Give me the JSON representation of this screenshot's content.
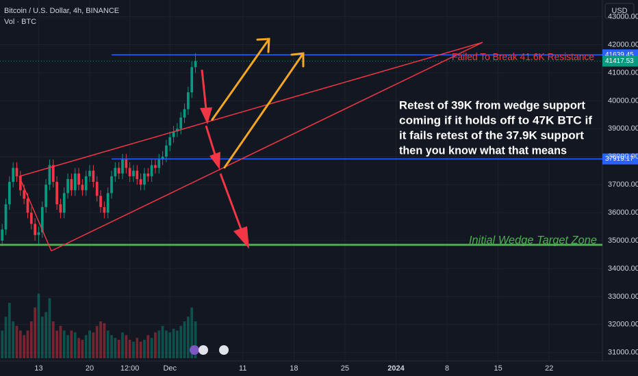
{
  "chart_data": {
    "type": "candlestick",
    "title": "Bitcoin / U.S. Dollar, 4h, BINANCE",
    "subtitle": "Vol · BTC",
    "currency": "USD",
    "annotation_resistance": "Failed To Break 41.6K Resistance",
    "annotation_target": "Initial Wedge Target Zone",
    "annotation_text": [
      "Retest of 39K from wedge support",
      "coming if it holds off to 47K BTC if",
      "it fails retest of the 37.9K support",
      "then you know what that means"
    ],
    "x": [
      8,
      8.5,
      9,
      9.5,
      10,
      10.5,
      11,
      11.5,
      12,
      12.5,
      13,
      13.5,
      14,
      14.5,
      15,
      15.5,
      16,
      16.5,
      17,
      17.5,
      18,
      18.5,
      19,
      19.5,
      20,
      20.5,
      21,
      21.5,
      22,
      22.5,
      23,
      23.5,
      24,
      24.5,
      25,
      25.5,
      26,
      26.5,
      27,
      27.5,
      28,
      28.5,
      29,
      29.5,
      30,
      30.5,
      31,
      31.5,
      32,
      32.5,
      33,
      33.5,
      34,
      34.5
    ],
    "open": [
      35000,
      35400,
      36300,
      37100,
      37600,
      37300,
      36800,
      36500,
      36000,
      35600,
      35200,
      35300,
      36200,
      37000,
      37700,
      37100,
      36300,
      36000,
      36700,
      37200,
      36800,
      37400,
      37000,
      36800,
      37300,
      37500,
      37100,
      36600,
      36200,
      36000,
      36700,
      37300,
      37600,
      37400,
      37900,
      37600,
      37300,
      37500,
      37200,
      37000,
      37400,
      37300,
      37700,
      37600,
      37900,
      38000,
      38400,
      38700,
      38900,
      39000,
      39400,
      39700,
      40300,
      41200
    ],
    "high": [
      35600,
      36500,
      37300,
      37800,
      37800,
      37500,
      37000,
      36700,
      36200,
      35800,
      35500,
      36400,
      37200,
      37900,
      37900,
      37300,
      36500,
      36900,
      37400,
      37400,
      37600,
      37600,
      37200,
      37500,
      37700,
      37700,
      37300,
      36800,
      36400,
      36900,
      37500,
      37800,
      37800,
      38100,
      38100,
      37800,
      37700,
      37700,
      37400,
      37600,
      37600,
      37900,
      37900,
      38100,
      38200,
      38600,
      38900,
      39100,
      39200,
      39600,
      39900,
      40500,
      41400,
      41700
    ],
    "low": [
      34800,
      35200,
      36100,
      36900,
      37100,
      36600,
      36300,
      35800,
      35400,
      35000,
      34850,
      35100,
      36000,
      36800,
      36900,
      36100,
      35800,
      35800,
      36500,
      36600,
      36600,
      36800,
      36600,
      36600,
      37100,
      36900,
      36400,
      36000,
      35800,
      35800,
      36500,
      37100,
      37200,
      37200,
      37400,
      37100,
      37100,
      37000,
      36800,
      36800,
      37100,
      37100,
      37400,
      37400,
      37700,
      37800,
      38200,
      38500,
      38700,
      38800,
      39200,
      39500,
      40100,
      41000
    ],
    "close": [
      35400,
      36300,
      37100,
      37600,
      37300,
      36800,
      36500,
      36000,
      35600,
      35200,
      35300,
      36200,
      37000,
      37700,
      37100,
      36300,
      36000,
      36700,
      37200,
      36800,
      37400,
      37000,
      36800,
      37300,
      37500,
      37100,
      36600,
      36200,
      36000,
      36700,
      37300,
      37600,
      37400,
      37900,
      37600,
      37300,
      37500,
      37200,
      37000,
      37400,
      37300,
      37700,
      37600,
      37900,
      38000,
      38400,
      38700,
      38900,
      39000,
      39400,
      39700,
      40300,
      41200,
      41417.53
    ],
    "volume": [
      30,
      45,
      60,
      40,
      35,
      30,
      25,
      30,
      40,
      55,
      70,
      45,
      50,
      65,
      40,
      30,
      35,
      30,
      25,
      30,
      28,
      22,
      20,
      25,
      30,
      28,
      35,
      40,
      38,
      30,
      25,
      22,
      20,
      28,
      25,
      20,
      18,
      22,
      18,
      20,
      25,
      22,
      28,
      30,
      35,
      30,
      28,
      32,
      30,
      35,
      40,
      45,
      55,
      40
    ],
    "vlim": [
      0,
      100
    ],
    "up_color": "#089981",
    "down_color": "#f23645",
    "xlim": [
      7.7,
      90.3
    ],
    "xticks": [
      13,
      20,
      {
        "value": 25.5,
        "label": "12:00"
      },
      {
        "value": 31,
        "label": "Dec"
      },
      {
        "value": 41,
        "label": "11"
      },
      {
        "value": 48,
        "label": "18"
      },
      {
        "value": 55,
        "label": "25"
      },
      {
        "value": 62,
        "label": "2024"
      },
      {
        "value": 69,
        "label": "8"
      },
      {
        "value": 76,
        "label": "15"
      },
      {
        "value": 83,
        "label": "22"
      }
    ],
    "ylim": [
      30700,
      43600
    ],
    "yticks": [
      {
        "value": 43000,
        "label": "43000.00"
      },
      {
        "value": 42000,
        "label": "42000.00"
      },
      {
        "value": 41000,
        "label": "41000.00"
      },
      {
        "value": 40000,
        "label": "40000.00"
      },
      {
        "value": 39000,
        "label": "39000.00"
      },
      {
        "value": 38000,
        "label": "38000.00"
      },
      {
        "value": 37000,
        "label": "37000.00"
      },
      {
        "value": 36000,
        "label": "36000.00"
      },
      {
        "value": 35000,
        "label": "35000.00"
      },
      {
        "value": 34000,
        "label": "34000.00"
      },
      {
        "value": 33000,
        "label": "33000.00"
      },
      {
        "value": 32000,
        "label": "32000.00"
      },
      {
        "value": 31000,
        "label": "31000.00"
      }
    ],
    "price_lines": [
      {
        "value": 41639.45,
        "color": "#2962ff"
      },
      {
        "value": 37919.17,
        "color": "#2962ff"
      }
    ],
    "current_price": {
      "value": 41417.53,
      "color": "#089981"
    },
    "target_line": {
      "value": 34850,
      "color": "#4caf50"
    }
  }
}
